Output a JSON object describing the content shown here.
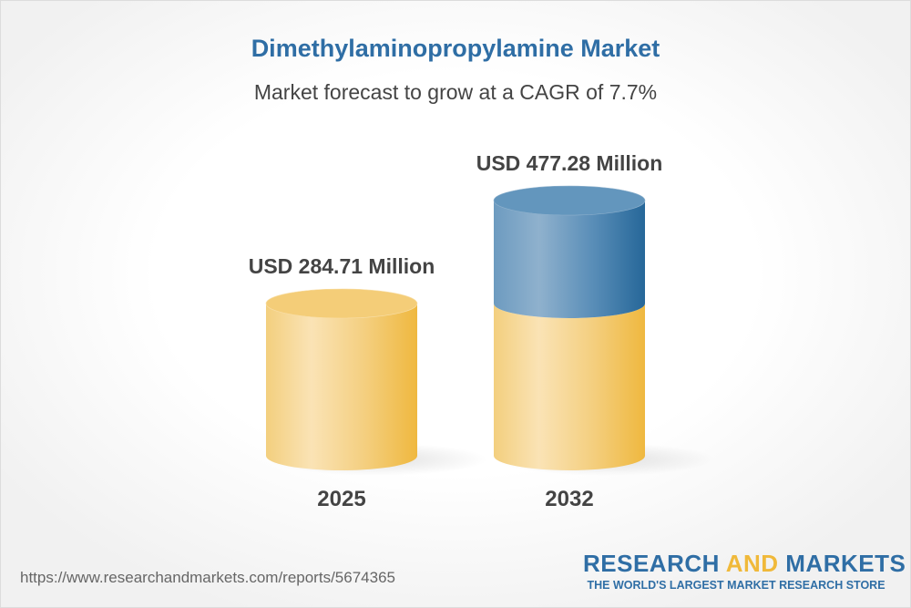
{
  "chart_data": {
    "type": "bar",
    "style": "3d-cylinder",
    "title": "Dimethylaminopropylamine Market",
    "subtitle": "Market forecast to grow at a CAGR of 7.7%",
    "categories": [
      "2025",
      "2032"
    ],
    "values": [
      284.71,
      477.28
    ],
    "data_labels": [
      "USD 284.71 Million",
      "USD 477.28 Million"
    ],
    "unit": "USD Million",
    "grid": false,
    "colors": {
      "base": "#f0b93a",
      "growth": "#2a6aa0",
      "title": "#2f6ea5",
      "text": "#444444"
    }
  },
  "footer": {
    "url": "https://www.researchandmarkets.com/reports/5674365",
    "logo": {
      "word1": "RESEARCH",
      "word2": "AND",
      "word3": "MARKETS",
      "tagline": "THE WORLD'S LARGEST MARKET RESEARCH STORE"
    }
  }
}
